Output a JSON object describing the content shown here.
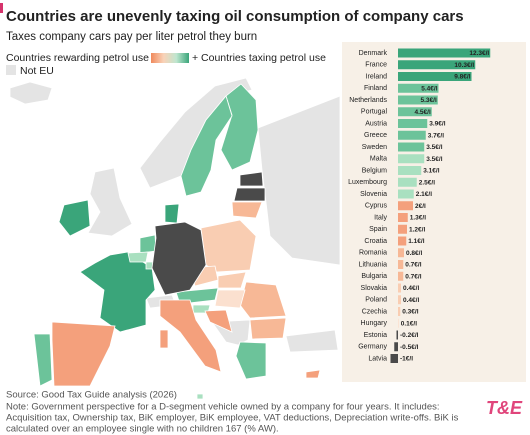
{
  "chart_data": {
    "type": "hbar",
    "title": "Countries are unevenly taxing oil consumption of company cars",
    "subtitle": "Taxes company cars pay per liter petrol they burn",
    "legend": {
      "negative": "Countries rewarding petrol use -",
      "positive": "+ Countries taxing petrol use",
      "not_eu": "Not EU",
      "gradient": [
        "#f08a5d",
        "#f9d2b8",
        "#bfe6cf",
        "#3aa57a"
      ],
      "not_eu_color": "#e4e4e4"
    },
    "categories": [
      "Denmark",
      "France",
      "Ireland",
      "Finland",
      "Netherlands",
      "Portugal",
      "Austria",
      "Greece",
      "Sweden",
      "Malta",
      "Belgium",
      "Luxembourg",
      "Slovenia",
      "Cyprus",
      "Italy",
      "Spain",
      "Croatia",
      "Romania",
      "Lithuania",
      "Bulgaria",
      "Slovakia",
      "Poland",
      "Czechia",
      "Hungary",
      "Estonia",
      "Germany",
      "Latvia"
    ],
    "values": [
      12.3,
      10.3,
      9.8,
      5.4,
      5.3,
      4.5,
      3.9,
      3.7,
      3.5,
      3.5,
      3.1,
      2.5,
      2.1,
      2,
      1.3,
      1.2,
      1.1,
      0.8,
      0.7,
      0.7,
      0.4,
      0.4,
      0.3,
      0.1,
      -0.2,
      -0.5,
      -1
    ],
    "value_labels": [
      "12.3€/l",
      "10.3€/l",
      "9.8€/l",
      "5.4€/l",
      "5.3€/l",
      "4.5€/l",
      "3.9€/l",
      "3.7€/l",
      "3.5€/l",
      "3.5€/l",
      "3.1€/l",
      "2.5€/l",
      "2.1€/l",
      "2€/l",
      "1.3€/l",
      "1.2€/l",
      "1.1€/l",
      "0.8€/l",
      "0.7€/l",
      "0.7€/l",
      "0.4€/l",
      "0.4€/l",
      "0.3€/l",
      "0.1€/l",
      "-0.2€/l",
      "-0.5€/l",
      "-1€/l"
    ],
    "colors": [
      "#3aa57a",
      "#3aa57a",
      "#3aa57a",
      "#6cc39a",
      "#6cc39a",
      "#6cc39a",
      "#6cc39a",
      "#6cc39a",
      "#6cc39a",
      "#a9e0c0",
      "#a9e0c0",
      "#a9e0c0",
      "#a9e0c0",
      "#f4a07c",
      "#f4a07c",
      "#f4a07c",
      "#f4a07c",
      "#f7b896",
      "#f7b896",
      "#f7b896",
      "#f9cdb2",
      "#f9cdb2",
      "#f9cdb2",
      "#fbe0cf",
      "#4a4a4a",
      "#4a4a4a",
      "#4a4a4a"
    ],
    "source": "Source: Good Tax Guide analysis (2026)",
    "note": [
      "Note: Government perspective for a D-segment vehicle owned by a company for four years. It includes:",
      "Acquisition tax, Ownership tax, BiK employer, BiK employee, VAT deductions, Depreciation write-offs. BiK is",
      "calculated over an employee single with no children 167 (% AW)."
    ],
    "logo": "T&E"
  }
}
